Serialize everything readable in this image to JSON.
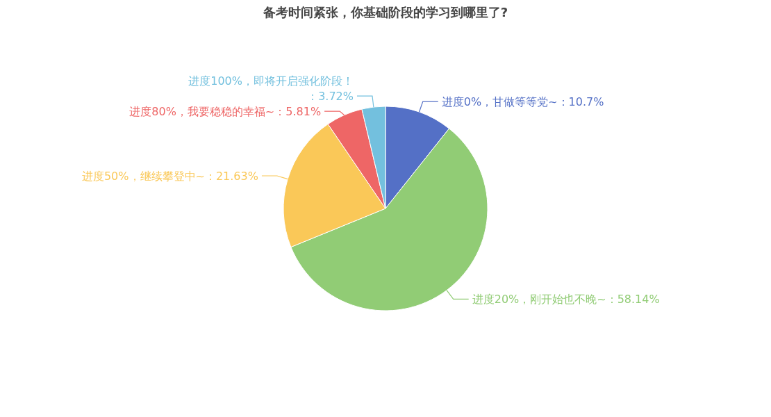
{
  "chart_data": {
    "type": "pie",
    "title": "备考时间紧张，你基础阶段的学习到哪里了?",
    "categories": [
      "进度0%，甘做等等党~",
      "进度20%，刚开始也不晚~",
      "进度50%，继续攀登中~",
      "进度80%，我要稳稳的幸福~",
      "进度100%，即将开启强化阶段！"
    ],
    "values": [
      10.7,
      58.14,
      21.63,
      5.81,
      3.72
    ],
    "value_labels": [
      "：10.7%",
      "：58.14%",
      "：21.63%",
      "：5.81%",
      "：3.72%"
    ],
    "colors": [
      "#5470c6",
      "#91cc75",
      "#fac858",
      "#ee6666",
      "#73c0de"
    ]
  }
}
